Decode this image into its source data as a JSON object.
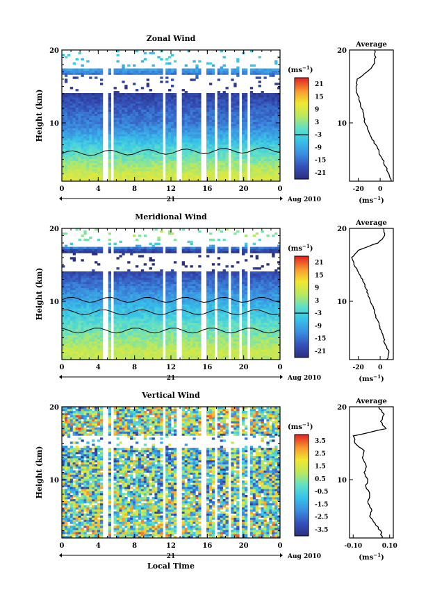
{
  "figure": {
    "xlabel": "Local Time",
    "date_label": "Aug 2010",
    "day_label": "21",
    "unit_label": "(ms",
    "unit_sup": "−1",
    "avg_xlabel": "(ms",
    "avg_xlabel_sup": "−1",
    "ylabel": "Height (km)"
  },
  "chart_data": [
    {
      "type": "heatmap",
      "title": "Zonal Wind",
      "xlabel": "Local Time",
      "ylabel": "Height (km)",
      "x_ticks": [
        "0",
        "4",
        "8",
        "12",
        "16",
        "20",
        "0"
      ],
      "xlim": [
        0,
        24
      ],
      "y_ticks": [
        "10",
        "20"
      ],
      "ylim": [
        2,
        20
      ],
      "colorbar_ticks": [
        "21",
        "15",
        "9",
        "3",
        "-3",
        "-9",
        "-15",
        "-21"
      ],
      "colorbar_range": [
        -24,
        24
      ],
      "zero_contour_height_km": 5.8,
      "data_gaps_local_time": [
        [
          4.5,
          5.0
        ],
        [
          5.4,
          5.8
        ],
        [
          11.0,
          11.4
        ],
        [
          12.7,
          13.1
        ],
        [
          15.4,
          15.8
        ],
        [
          16.7,
          17.2
        ],
        [
          18.2,
          18.6
        ],
        [
          19.4,
          19.8
        ],
        [
          20.4,
          20.8
        ]
      ],
      "profile": {
        "title": "Average",
        "x_ticks": [
          "-20",
          "0"
        ],
        "xlim": [
          -28,
          12
        ],
        "heights": [
          2,
          3,
          4,
          5,
          6,
          7,
          8,
          9,
          10,
          11,
          12,
          13,
          14,
          15,
          16,
          17,
          18,
          19,
          20
        ],
        "values": [
          10,
          8,
          5,
          2,
          -1,
          -4,
          -8,
          -11,
          -14,
          -15,
          -17,
          -19,
          -21,
          -22,
          -21,
          -12,
          -6,
          -4,
          -5
        ]
      }
    },
    {
      "type": "heatmap",
      "title": "Meridional Wind",
      "xlabel": "Local Time",
      "ylabel": "Height (km)",
      "x_ticks": [
        "0",
        "4",
        "8",
        "12",
        "16",
        "20",
        "0"
      ],
      "xlim": [
        0,
        24
      ],
      "y_ticks": [
        "10",
        "20"
      ],
      "ylim": [
        2,
        20
      ],
      "colorbar_ticks": [
        "21",
        "15",
        "9",
        "3",
        "-3",
        "-9",
        "-15",
        "-21"
      ],
      "colorbar_range": [
        -24,
        24
      ],
      "zero_contour_heights_km": [
        10.2,
        8.5,
        6.0
      ],
      "data_gaps_local_time": [
        [
          4.5,
          5.0
        ],
        [
          5.4,
          5.8
        ],
        [
          11.0,
          11.4
        ],
        [
          12.7,
          13.1
        ],
        [
          15.4,
          15.8
        ],
        [
          16.7,
          17.2
        ],
        [
          18.2,
          18.6
        ],
        [
          19.4,
          19.8
        ],
        [
          20.4,
          20.8
        ]
      ],
      "profile": {
        "title": "Average",
        "x_ticks": [
          "-20",
          "0"
        ],
        "xlim": [
          -28,
          12
        ],
        "heights": [
          2,
          3,
          4,
          5,
          6,
          7,
          8,
          9,
          10,
          11,
          12,
          13,
          14,
          15,
          16,
          17,
          18,
          19,
          20
        ],
        "values": [
          6,
          8,
          5,
          3,
          1,
          -1,
          -4,
          -6,
          -9,
          -11,
          -14,
          -16,
          -20,
          -24,
          -26,
          -20,
          -2,
          4,
          3
        ]
      }
    },
    {
      "type": "heatmap",
      "title": "Vertical Wind",
      "xlabel": "Local Time",
      "ylabel": "Height (km)",
      "x_ticks": [
        "0",
        "4",
        "8",
        "12",
        "16",
        "20",
        "0"
      ],
      "xlim": [
        0,
        24
      ],
      "y_ticks": [
        "10",
        "20"
      ],
      "ylim": [
        2,
        20
      ],
      "colorbar_ticks": [
        "3.5",
        "2.5",
        "1.5",
        "0.5",
        "-0.5",
        "-1.5",
        "-2.5",
        "-3.5"
      ],
      "colorbar_range": [
        -4,
        4
      ],
      "data_gaps_local_time": [
        [
          4.5,
          5.0
        ],
        [
          5.4,
          5.8
        ],
        [
          11.0,
          11.4
        ],
        [
          12.7,
          13.1
        ],
        [
          15.4,
          15.8
        ],
        [
          16.7,
          17.2
        ],
        [
          18.2,
          18.6
        ],
        [
          19.4,
          19.8
        ],
        [
          20.4,
          20.8
        ]
      ],
      "profile": {
        "title": "Average",
        "x_ticks": [
          "-0.10",
          "0.10"
        ],
        "xlim": [
          -0.12,
          0.12
        ],
        "heights": [
          2,
          3,
          4,
          5,
          6,
          7,
          8,
          9,
          10,
          11,
          12,
          13,
          14,
          15,
          16,
          17,
          18,
          19,
          20
        ],
        "values": [
          0.06,
          0.05,
          0.02,
          -0.01,
          0.0,
          -0.02,
          -0.01,
          -0.03,
          -0.02,
          -0.04,
          -0.03,
          -0.05,
          -0.04,
          -0.09,
          -0.1,
          0.08,
          0.05,
          0.07,
          0.04
        ]
      }
    }
  ]
}
